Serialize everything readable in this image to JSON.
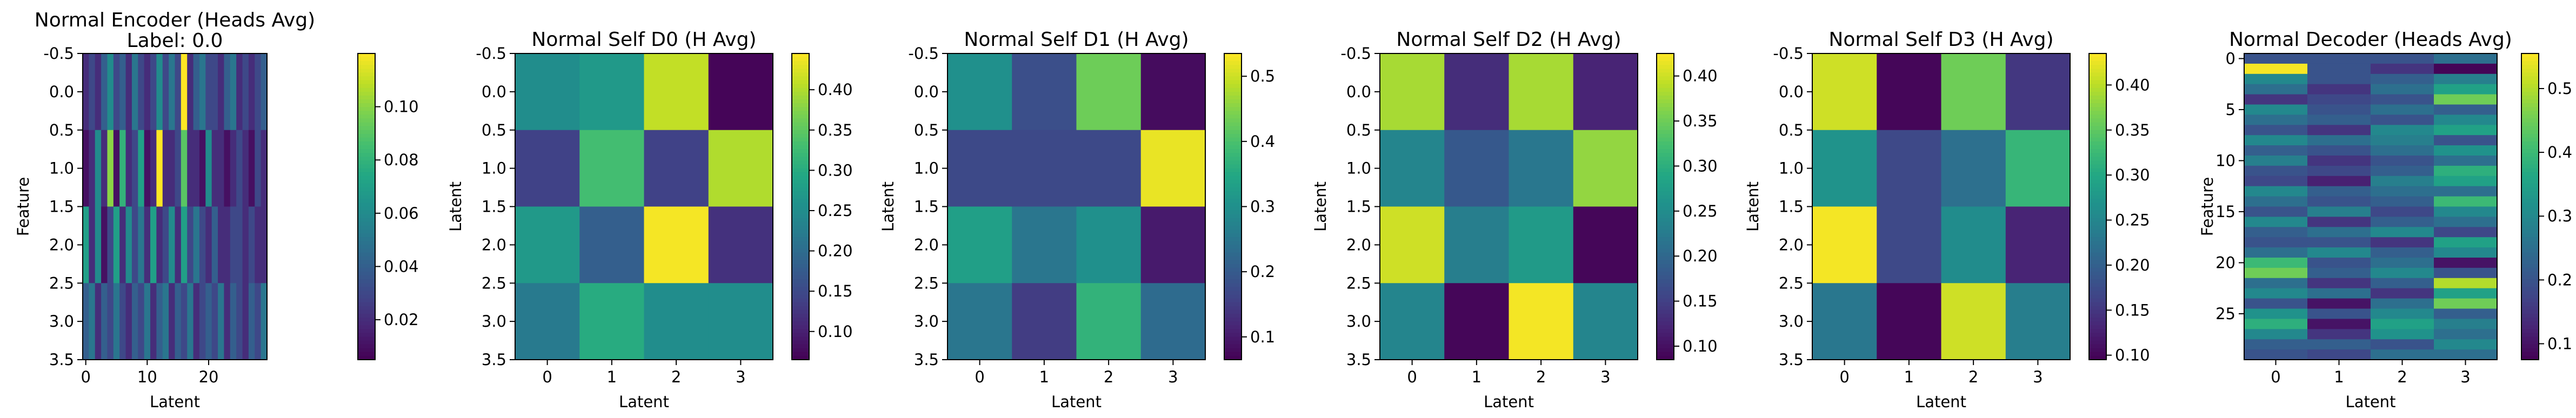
{
  "chart_data": [
    {
      "type": "heatmap",
      "title": "Normal Encoder (Heads Avg)",
      "subtitle": "Label: 0.0",
      "xlabel": "Latent",
      "ylabel": "Feature",
      "xlim": [
        -0.5,
        29.5
      ],
      "ylim": [
        3.5,
        -0.5
      ],
      "xticks": [
        0,
        10,
        20
      ],
      "yticks": [
        -0.5,
        0.0,
        0.5,
        1.0,
        1.5,
        2.0,
        2.5,
        3.0,
        3.5
      ],
      "colormap": "viridis",
      "cbar_range": [
        0.005,
        0.12
      ],
      "cbar_ticks": [
        0.02,
        0.04,
        0.06,
        0.08,
        0.1
      ],
      "values": [
        [
          0.02,
          0.03,
          0.02,
          0.04,
          0.06,
          0.03,
          0.04,
          0.02,
          0.05,
          0.03,
          0.02,
          0.03,
          0.06,
          0.03,
          0.05,
          0.03,
          0.12,
          0.02,
          0.04,
          0.05,
          0.03,
          0.03,
          0.02,
          0.04,
          0.05,
          0.02,
          0.03,
          0.02,
          0.03,
          0.04
        ],
        [
          0.01,
          0.02,
          0.06,
          0.02,
          0.1,
          0.01,
          0.08,
          0.02,
          0.03,
          0.07,
          0.01,
          0.02,
          0.12,
          0.02,
          0.02,
          0.03,
          0.09,
          0.02,
          0.02,
          0.01,
          0.06,
          0.02,
          0.02,
          0.01,
          0.02,
          0.03,
          0.02,
          0.01,
          0.03,
          0.02
        ],
        [
          0.07,
          0.02,
          0.06,
          0.01,
          0.03,
          0.07,
          0.02,
          0.06,
          0.03,
          0.05,
          0.02,
          0.07,
          0.02,
          0.03,
          0.06,
          0.02,
          0.07,
          0.03,
          0.05,
          0.03,
          0.02,
          0.04,
          0.02,
          0.02,
          0.03,
          0.03,
          0.02,
          0.03,
          0.02,
          0.02
        ],
        [
          0.04,
          0.05,
          0.02,
          0.04,
          0.03,
          0.05,
          0.03,
          0.02,
          0.04,
          0.03,
          0.05,
          0.02,
          0.04,
          0.05,
          0.02,
          0.04,
          0.03,
          0.05,
          0.02,
          0.03,
          0.04,
          0.03,
          0.05,
          0.02,
          0.04,
          0.03,
          0.02,
          0.04,
          0.03,
          0.05
        ]
      ]
    },
    {
      "type": "heatmap",
      "title": "Normal Self D0 (H Avg)",
      "xlabel": "Latent",
      "ylabel": "Latent",
      "xlim": [
        -0.5,
        3.5
      ],
      "ylim": [
        3.5,
        -0.5
      ],
      "xticks": [
        0,
        1,
        2,
        3
      ],
      "yticks": [
        -0.5,
        0.0,
        0.5,
        1.0,
        1.5,
        2.0,
        2.5,
        3.0,
        3.5
      ],
      "colormap": "viridis",
      "cbar_range": [
        0.065,
        0.445
      ],
      "cbar_ticks": [
        0.1,
        0.15,
        0.2,
        0.25,
        0.3,
        0.35,
        0.4
      ],
      "values": [
        [
          0.25,
          0.27,
          0.41,
          0.07
        ],
        [
          0.14,
          0.33,
          0.14,
          0.4
        ],
        [
          0.27,
          0.18,
          0.44,
          0.12
        ],
        [
          0.22,
          0.3,
          0.25,
          0.25
        ]
      ]
    },
    {
      "type": "heatmap",
      "title": "Normal Self D1 (H Avg)",
      "xlabel": "Latent",
      "ylabel": "Latent",
      "xlim": [
        -0.5,
        3.5
      ],
      "ylim": [
        3.5,
        -0.5
      ],
      "xticks": [
        0,
        1,
        2,
        3
      ],
      "yticks": [
        -0.5,
        0.0,
        0.5,
        1.0,
        1.5,
        2.0,
        2.5,
        3.0,
        3.5
      ],
      "colormap": "viridis",
      "cbar_range": [
        0.065,
        0.535
      ],
      "cbar_ticks": [
        0.1,
        0.2,
        0.3,
        0.4,
        0.5
      ],
      "values": [
        [
          0.3,
          0.18,
          0.43,
          0.08
        ],
        [
          0.17,
          0.17,
          0.17,
          0.52
        ],
        [
          0.33,
          0.25,
          0.3,
          0.1
        ],
        [
          0.25,
          0.15,
          0.37,
          0.23
        ]
      ]
    },
    {
      "type": "heatmap",
      "title": "Normal Self D2 (H Avg)",
      "xlabel": "Latent",
      "ylabel": "Latent",
      "xlim": [
        -0.5,
        3.5
      ],
      "ylim": [
        3.5,
        -0.5
      ],
      "xticks": [
        0,
        1,
        2,
        3
      ],
      "yticks": [
        -0.5,
        0.0,
        0.5,
        1.0,
        1.5,
        2.0,
        2.5,
        3.0,
        3.5
      ],
      "colormap": "viridis",
      "cbar_range": [
        0.085,
        0.425
      ],
      "cbar_ticks": [
        0.1,
        0.15,
        0.2,
        0.25,
        0.3,
        0.35,
        0.4
      ],
      "values": [
        [
          0.38,
          0.13,
          0.38,
          0.12
        ],
        [
          0.24,
          0.18,
          0.22,
          0.37
        ],
        [
          0.4,
          0.23,
          0.27,
          0.09
        ],
        [
          0.24,
          0.09,
          0.42,
          0.24
        ]
      ]
    },
    {
      "type": "heatmap",
      "title": "Normal Self D3 (H Avg)",
      "xlabel": "Latent",
      "ylabel": "Latent",
      "xlim": [
        -0.5,
        3.5
      ],
      "ylim": [
        3.5,
        -0.5
      ],
      "xticks": [
        0,
        1,
        2,
        3
      ],
      "yticks": [
        -0.5,
        0.0,
        0.5,
        1.0,
        1.5,
        2.0,
        2.5,
        3.0,
        3.5
      ],
      "colormap": "viridis",
      "cbar_range": [
        0.095,
        0.435
      ],
      "cbar_ticks": [
        0.1,
        0.15,
        0.2,
        0.25,
        0.3,
        0.35,
        0.4
      ],
      "values": [
        [
          0.41,
          0.1,
          0.36,
          0.15
        ],
        [
          0.27,
          0.17,
          0.22,
          0.32
        ],
        [
          0.43,
          0.17,
          0.26,
          0.13
        ],
        [
          0.23,
          0.1,
          0.41,
          0.24
        ]
      ]
    },
    {
      "type": "heatmap",
      "title": "Normal Decoder (Heads Avg)",
      "xlabel": "Latent",
      "ylabel": "Feature",
      "xlim": [
        -0.5,
        3.5
      ],
      "ylim": [
        29.5,
        -0.5
      ],
      "xticks": [
        0,
        1,
        2,
        3
      ],
      "yticks": [
        0,
        5,
        10,
        15,
        20,
        25
      ],
      "colormap": "viridis",
      "cbar_range": [
        0.075,
        0.555
      ],
      "cbar_ticks": [
        0.1,
        0.2,
        0.3,
        0.4,
        0.5
      ],
      "values": [
        [
          0.2,
          0.2,
          0.2,
          0.25
        ],
        [
          0.55,
          0.2,
          0.15,
          0.08
        ],
        [
          0.3,
          0.2,
          0.22,
          0.28
        ],
        [
          0.25,
          0.15,
          0.25,
          0.35
        ],
        [
          0.15,
          0.18,
          0.2,
          0.45
        ],
        [
          0.3,
          0.2,
          0.25,
          0.22
        ],
        [
          0.25,
          0.22,
          0.2,
          0.3
        ],
        [
          0.2,
          0.15,
          0.3,
          0.35
        ],
        [
          0.3,
          0.25,
          0.28,
          0.2
        ],
        [
          0.22,
          0.2,
          0.25,
          0.32
        ],
        [
          0.28,
          0.15,
          0.2,
          0.25
        ],
        [
          0.2,
          0.18,
          0.22,
          0.38
        ],
        [
          0.18,
          0.12,
          0.28,
          0.35
        ],
        [
          0.3,
          0.22,
          0.25,
          0.25
        ],
        [
          0.25,
          0.2,
          0.22,
          0.4
        ],
        [
          0.2,
          0.28,
          0.18,
          0.3
        ],
        [
          0.3,
          0.15,
          0.22,
          0.25
        ],
        [
          0.22,
          0.25,
          0.3,
          0.18
        ],
        [
          0.2,
          0.2,
          0.15,
          0.35
        ],
        [
          0.25,
          0.3,
          0.22,
          0.3
        ],
        [
          0.4,
          0.2,
          0.25,
          0.1
        ],
        [
          0.45,
          0.22,
          0.3,
          0.2
        ],
        [
          0.25,
          0.15,
          0.22,
          0.5
        ],
        [
          0.3,
          0.25,
          0.15,
          0.35
        ],
        [
          0.2,
          0.1,
          0.25,
          0.45
        ],
        [
          0.32,
          0.2,
          0.3,
          0.22
        ],
        [
          0.38,
          0.1,
          0.35,
          0.28
        ],
        [
          0.3,
          0.15,
          0.32,
          0.25
        ],
        [
          0.22,
          0.22,
          0.2,
          0.3
        ],
        [
          0.2,
          0.18,
          0.25,
          0.25
        ]
      ]
    }
  ]
}
